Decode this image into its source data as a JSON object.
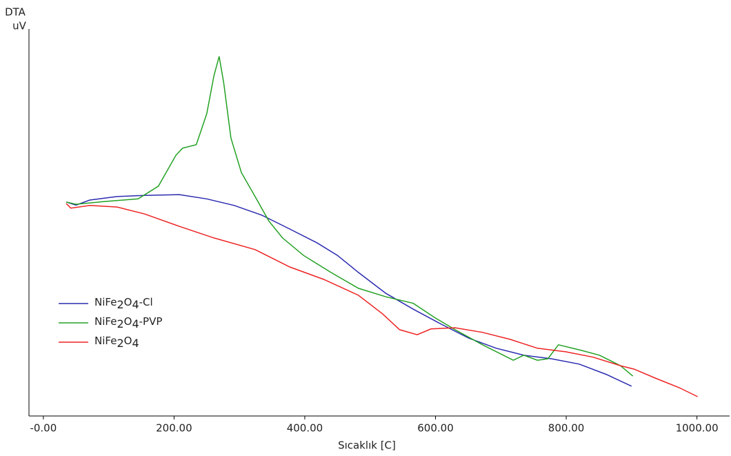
{
  "chart_data": {
    "type": "line",
    "y_label": "DTA",
    "y_unit": "uV",
    "x_label": "Sıcaklık [C]",
    "xlim": [
      -22,
      1050
    ],
    "ylim": [
      0,
      100
    ],
    "xticks": [
      {
        "value": 0,
        "label": "-0.00"
      },
      {
        "value": 200,
        "label": "200.00"
      },
      {
        "value": 400,
        "label": "400.00"
      },
      {
        "value": 600,
        "label": "600.00"
      },
      {
        "value": 800,
        "label": "800.00"
      },
      {
        "value": 1000,
        "label": "1000.00"
      }
    ],
    "series": [
      {
        "name": "NiFe2O4-Cl",
        "color": "#2a2ab0",
        "x": [
          35,
          50,
          71,
          113,
          155,
          208,
          250,
          292,
          334,
          377,
          419,
          450,
          482,
          524,
          566,
          609,
          651,
          693,
          735,
          777,
          820,
          862,
          900
        ],
        "values": [
          55.3,
          54.5,
          55.8,
          56.7,
          57.0,
          57.2,
          56.1,
          54.4,
          51.9,
          48.3,
          44.7,
          41.5,
          37.1,
          31.7,
          27.6,
          23.7,
          20.1,
          17.5,
          15.7,
          14.8,
          13.4,
          10.7,
          7.7
        ]
      },
      {
        "name": "NiFe2O4-PVP",
        "color": "#22a022",
        "x": [
          35,
          50,
          92,
          145,
          176,
          203,
          213,
          234,
          250,
          261,
          269,
          276,
          287,
          303,
          324,
          345,
          366,
          398,
          440,
          482,
          524,
          566,
          598,
          630,
          672,
          719,
          735,
          756,
          772,
          788,
          820,
          851,
          883,
          902
        ],
        "values": [
          55.3,
          54.7,
          55.4,
          56.1,
          59.4,
          67.4,
          69.2,
          70.1,
          78.1,
          87.9,
          92.9,
          86.1,
          71.8,
          62.9,
          56.7,
          50.4,
          46.0,
          41.5,
          37.1,
          33.0,
          30.8,
          29.1,
          25.5,
          22.3,
          18.4,
          14.4,
          15.7,
          14.4,
          14.8,
          18.4,
          17.1,
          15.7,
          13.0,
          10.3
        ]
      },
      {
        "name": "NiFe2O4",
        "color": "#ee2222",
        "x": [
          35,
          42,
          71,
          113,
          155,
          208,
          261,
          324,
          377,
          429,
          482,
          519,
          545,
          572,
          593,
          630,
          672,
          714,
          756,
          799,
          841,
          883,
          904,
          936,
          973,
          1001
        ],
        "values": [
          54.9,
          53.7,
          54.4,
          54.0,
          52.2,
          49.0,
          46.0,
          43.0,
          38.5,
          35.3,
          31.2,
          26.4,
          22.3,
          21.0,
          22.5,
          22.8,
          21.6,
          19.8,
          17.5,
          16.6,
          15.2,
          13.0,
          12.1,
          9.8,
          7.3,
          5.0
        ]
      }
    ]
  }
}
